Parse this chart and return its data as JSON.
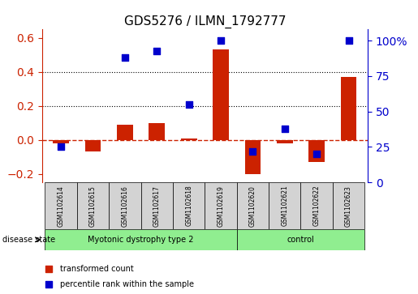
{
  "title": "GDS5276 / ILMN_1792777",
  "samples": [
    "GSM1102614",
    "GSM1102615",
    "GSM1102616",
    "GSM1102617",
    "GSM1102618",
    "GSM1102619",
    "GSM1102620",
    "GSM1102621",
    "GSM1102622",
    "GSM1102623"
  ],
  "red_values": [
    -0.02,
    -0.07,
    0.09,
    0.1,
    0.01,
    0.53,
    -0.2,
    -0.02,
    -0.13,
    0.37
  ],
  "blue_values": [
    25,
    null,
    88,
    93,
    55,
    100,
    22,
    38,
    20,
    100
  ],
  "ylim_left": [
    -0.25,
    0.65
  ],
  "ylim_right": [
    0,
    108
  ],
  "yticks_left": [
    -0.2,
    0.0,
    0.2,
    0.4,
    0.6
  ],
  "yticks_right": [
    0,
    25,
    50,
    75,
    100
  ],
  "ytick_labels_right": [
    "0",
    "25",
    "50",
    "75",
    "100%"
  ],
  "disease_groups": [
    {
      "label": "Myotonic dystrophy type 2",
      "start": 0,
      "end": 5,
      "color": "#90EE90"
    },
    {
      "label": "control",
      "start": 6,
      "end": 9,
      "color": "#90EE90"
    }
  ],
  "bar_width": 0.5,
  "red_color": "#CC2200",
  "blue_color": "#0000CC",
  "dashed_line_color": "#CC2200",
  "grid_color": "#000000",
  "label_row_color": "#D3D3D3",
  "disease_state_label": "disease state",
  "legend_red": "transformed count",
  "legend_blue": "percentile rank within the sample"
}
